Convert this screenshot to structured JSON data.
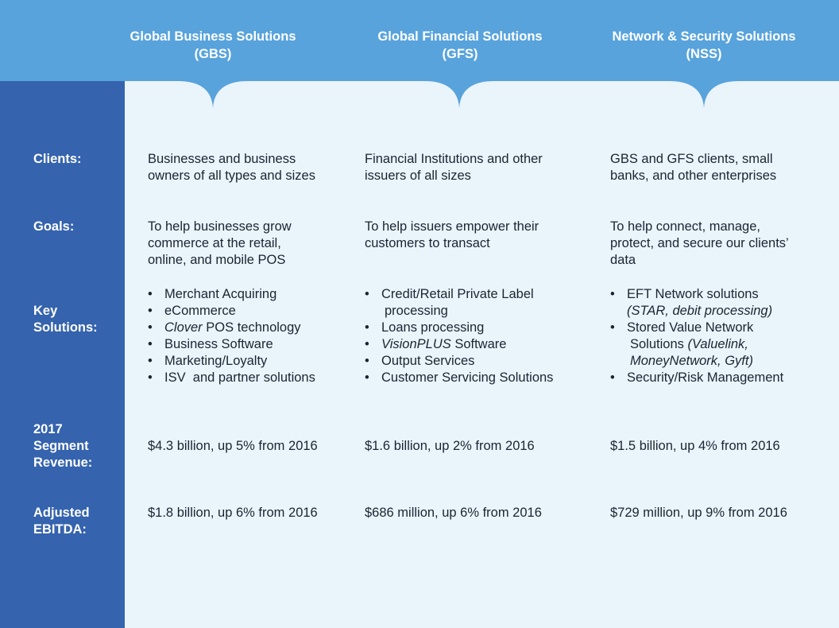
{
  "colors": {
    "header": "#58a3dc",
    "sidebar": "#3563ae",
    "body": "#eaf4fb"
  },
  "columns": [
    {
      "name": "Global Business Solutions",
      "abbr": "(GBS)"
    },
    {
      "name": "Global Financial Solutions",
      "abbr": "(GFS)"
    },
    {
      "name": "Network & Security Solutions",
      "abbr": "(NSS)"
    }
  ],
  "rows": {
    "clients_label": "Clients:",
    "goals_label": "Goals:",
    "key_label_1": "Key",
    "key_label_2": "Solutions:",
    "revenue_label_1": "2017",
    "revenue_label_2": "Segment",
    "revenue_label_3": "Revenue:",
    "ebitda_label_1": "Adjusted",
    "ebitda_label_2": "EBITDA:"
  },
  "gbs": {
    "clients_1": "Businesses and business",
    "clients_2": "owners of all types and sizes",
    "goals_1": "To help businesses grow",
    "goals_2": "commerce at the retail,",
    "goals_3": "online, and mobile POS",
    "sol_1": "Merchant Acquiring",
    "sol_2": "eCommerce",
    "sol_3_italic": "Clover",
    "sol_3_rest": " POS technology",
    "sol_4": "Business Software",
    "sol_5": "Marketing/Loyalty",
    "sol_6": "ISV  and partner solutions",
    "revenue": "$4.3 billion, up 5% from 2016",
    "ebitda": "$1.8 billion, up 6% from 2016"
  },
  "gfs": {
    "clients_1": "Financial Institutions and other",
    "clients_2": "issuers of all sizes",
    "goals_1": "To help issuers empower their",
    "goals_2": "customers to transact",
    "sol_1a": "Credit/Retail Private Label",
    "sol_1b": "processing",
    "sol_2": "Loans processing",
    "sol_3_italic": "VisionPLUS",
    "sol_3_rest": " Software",
    "sol_4": "Output Services",
    "sol_5": "Customer Servicing Solutions",
    "revenue": "$1.6 billion, up 2% from 2016",
    "ebitda": "$686 million, up 6% from 2016"
  },
  "nss": {
    "clients_1": "GBS and GFS clients, small",
    "clients_2": "banks, and other enterprises",
    "goals_1": "To help connect, manage,",
    "goals_2": "protect, and secure our clients’",
    "goals_3": "data",
    "sol_1a": "EFT Network solutions",
    "sol_1b": "(STAR, debit processing)",
    "sol_2a": "Stored Value Network",
    "sol_2b": "Solutions ",
    "sol_2b_italic": "(Valuelink,",
    "sol_2c": "MoneyNetwork, Gyft)",
    "sol_3": "Security/Risk Management",
    "revenue": "$1.5 billion, up 4% from 2016",
    "ebitda": "$729 million, up 9% from 2016"
  }
}
